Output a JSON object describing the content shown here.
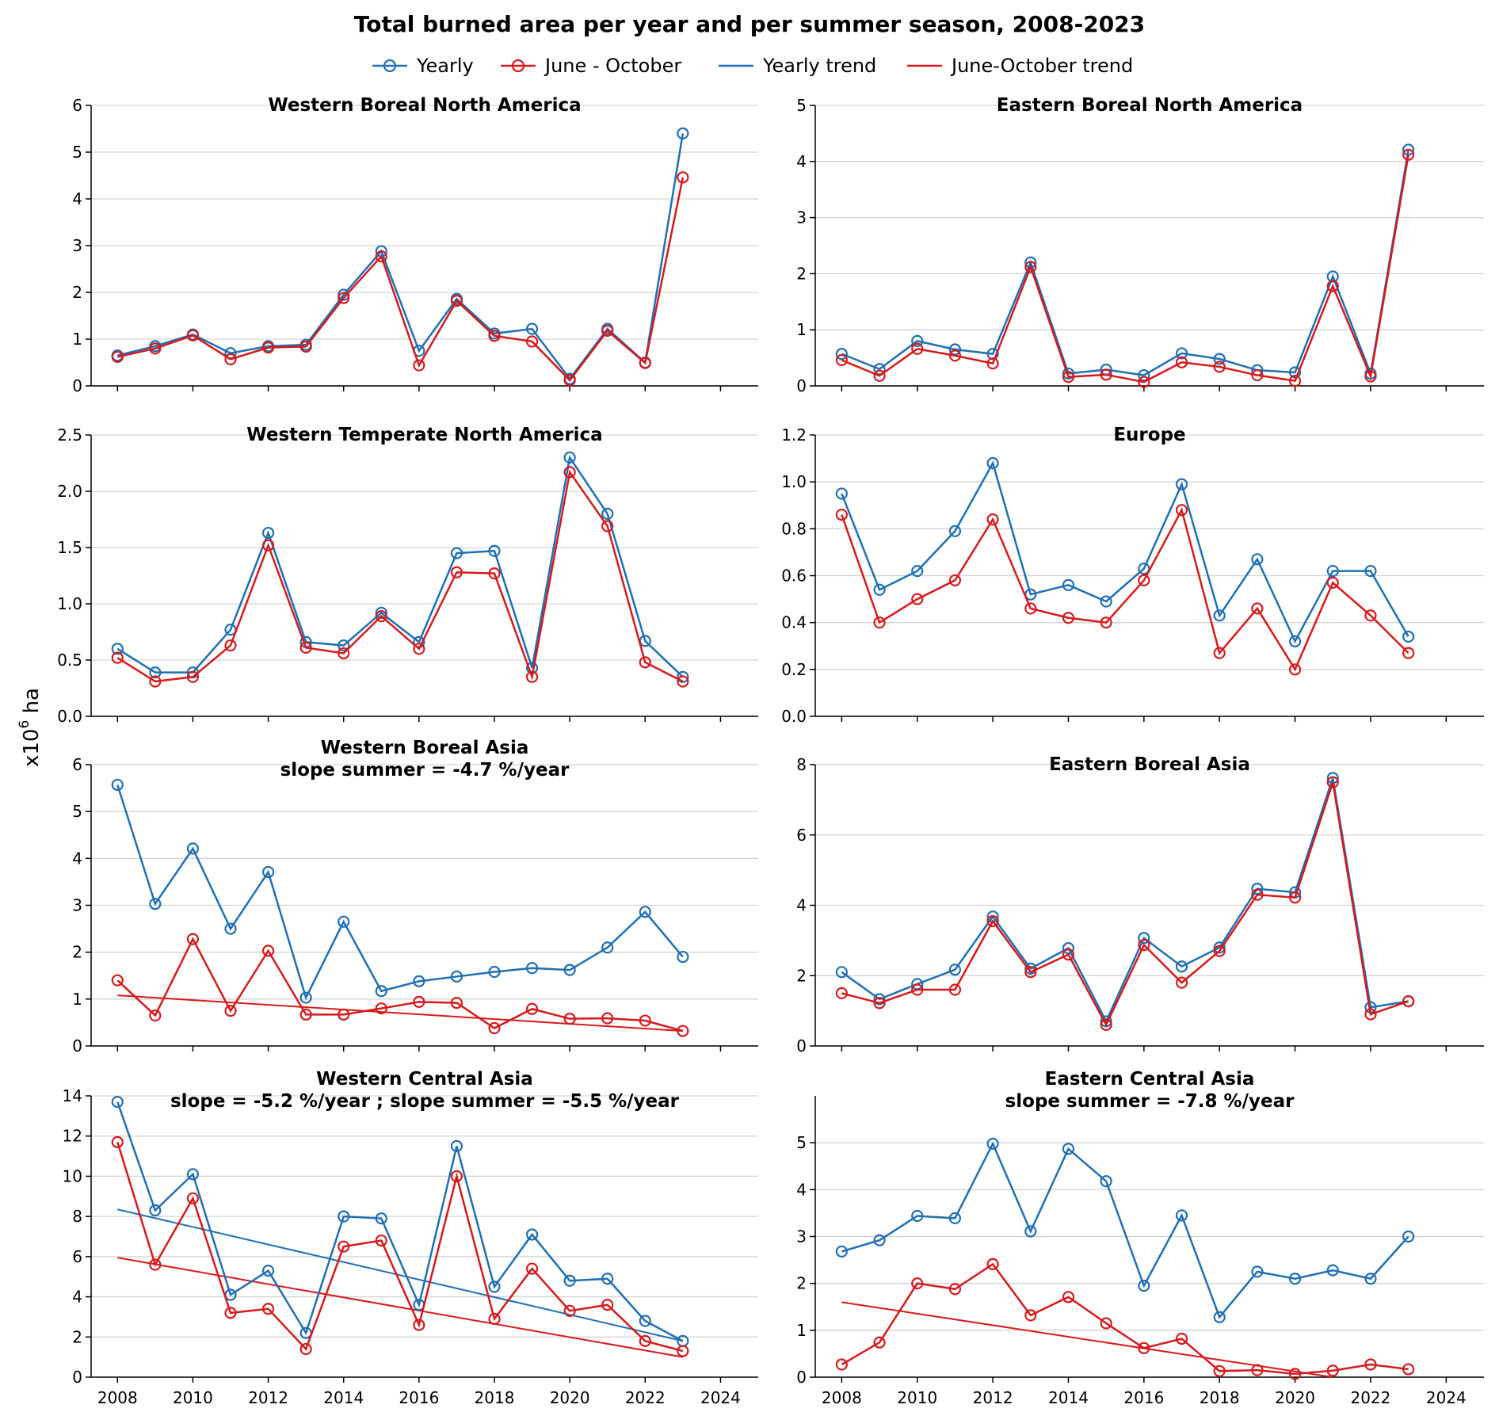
{
  "title": "Total burned area per year and per summer season, 2008-2023",
  "ylabel": "x10",
  "ylabel_sup": "6",
  "ylabel_unit": " ha",
  "legend": [
    {
      "label": "Yearly",
      "color": "#1f6fb4",
      "marker": true
    },
    {
      "label": "June - October",
      "color": "#d7191c",
      "marker": true
    },
    {
      "label": "Yearly trend",
      "color": "#1f6fb4",
      "marker": false
    },
    {
      "label": "June-October trend",
      "color": "#d7191c",
      "marker": false
    }
  ],
  "colors": {
    "yearly": "#1f6fb4",
    "summer": "#d7191c",
    "grid": "#d3d3d3"
  },
  "chart_data": [
    {
      "type": "line",
      "title": "Western Boreal North America",
      "subtitle": "",
      "xlim": [
        2007.3,
        2025
      ],
      "ylim": [
        0,
        6
      ],
      "yticks": [
        0,
        1,
        2,
        3,
        4,
        5,
        6
      ],
      "ytick_labels": [
        "0",
        "1",
        "2",
        "3",
        "4",
        "5",
        "6"
      ],
      "grid": "horizontal",
      "x": [
        2008,
        2009,
        2010,
        2011,
        2012,
        2013,
        2014,
        2015,
        2016,
        2017,
        2018,
        2019,
        2020,
        2021,
        2022,
        2023
      ],
      "series": [
        {
          "name": "Yearly",
          "values": [
            0.65,
            0.85,
            1.1,
            0.7,
            0.85,
            0.88,
            1.95,
            2.88,
            0.75,
            1.86,
            1.12,
            1.22,
            0.15,
            1.22,
            0.5,
            5.4
          ]
        },
        {
          "name": "June - October",
          "values": [
            0.62,
            0.8,
            1.08,
            0.57,
            0.82,
            0.84,
            1.88,
            2.77,
            0.44,
            1.82,
            1.07,
            0.95,
            0.12,
            1.18,
            0.49,
            4.46
          ]
        }
      ],
      "trends": []
    },
    {
      "type": "line",
      "title": "Eastern Boreal North America",
      "subtitle": "",
      "xlim": [
        2007.3,
        2025
      ],
      "ylim": [
        0,
        5
      ],
      "yticks": [
        0,
        1,
        2,
        3,
        4,
        5
      ],
      "ytick_labels": [
        "0",
        "1",
        "2",
        "3",
        "4",
        "5"
      ],
      "grid": "horizontal",
      "x": [
        2008,
        2009,
        2010,
        2011,
        2012,
        2013,
        2014,
        2015,
        2016,
        2017,
        2018,
        2019,
        2020,
        2021,
        2022,
        2023
      ],
      "series": [
        {
          "name": "Yearly",
          "values": [
            0.57,
            0.3,
            0.8,
            0.65,
            0.57,
            2.2,
            0.22,
            0.29,
            0.19,
            0.58,
            0.48,
            0.28,
            0.24,
            1.95,
            0.22,
            4.21
          ]
        },
        {
          "name": "June - October",
          "values": [
            0.46,
            0.18,
            0.66,
            0.54,
            0.4,
            2.12,
            0.16,
            0.2,
            0.07,
            0.42,
            0.34,
            0.19,
            0.09,
            1.78,
            0.17,
            4.12
          ]
        }
      ],
      "trends": []
    },
    {
      "type": "line",
      "title": "Western Temperate North America",
      "subtitle": "",
      "xlim": [
        2007.3,
        2025
      ],
      "ylim": [
        0,
        2.5
      ],
      "yticks": [
        0,
        0.5,
        1,
        1.5,
        2,
        2.5
      ],
      "ytick_labels": [
        "0.0",
        "0.5",
        "1.0",
        "1.5",
        "2.0",
        "2.5"
      ],
      "grid": "horizontal",
      "x": [
        2008,
        2009,
        2010,
        2011,
        2012,
        2013,
        2014,
        2015,
        2016,
        2017,
        2018,
        2019,
        2020,
        2021,
        2022,
        2023
      ],
      "series": [
        {
          "name": "Yearly",
          "values": [
            0.6,
            0.39,
            0.39,
            0.77,
            1.63,
            0.66,
            0.63,
            0.92,
            0.66,
            1.45,
            1.47,
            0.43,
            2.3,
            1.8,
            0.67,
            0.35
          ]
        },
        {
          "name": "June - October",
          "values": [
            0.52,
            0.31,
            0.35,
            0.63,
            1.52,
            0.61,
            0.56,
            0.89,
            0.6,
            1.28,
            1.27,
            0.35,
            2.17,
            1.69,
            0.48,
            0.31
          ]
        }
      ],
      "trends": []
    },
    {
      "type": "line",
      "title": "Europe",
      "subtitle": "",
      "xlim": [
        2007.3,
        2025
      ],
      "ylim": [
        0,
        1.2
      ],
      "yticks": [
        0,
        0.2,
        0.4,
        0.6,
        0.8,
        1.0,
        1.2
      ],
      "ytick_labels": [
        "0.0",
        "0.2",
        "0.4",
        "0.6",
        "0.8",
        "1.0",
        "1.2"
      ],
      "grid": "horizontal",
      "x": [
        2008,
        2009,
        2010,
        2011,
        2012,
        2013,
        2014,
        2015,
        2016,
        2017,
        2018,
        2019,
        2020,
        2021,
        2022,
        2023
      ],
      "series": [
        {
          "name": "Yearly",
          "values": [
            0.95,
            0.54,
            0.62,
            0.79,
            1.08,
            0.52,
            0.56,
            0.49,
            0.63,
            0.99,
            0.43,
            0.67,
            0.32,
            0.62,
            0.62,
            0.34
          ]
        },
        {
          "name": "June - October",
          "values": [
            0.86,
            0.4,
            0.5,
            0.58,
            0.84,
            0.46,
            0.42,
            0.4,
            0.58,
            0.88,
            0.27,
            0.46,
            0.2,
            0.57,
            0.43,
            0.27
          ]
        }
      ],
      "trends": []
    },
    {
      "type": "line",
      "title": "Western Boreal Asia",
      "subtitle": "slope summer = -4.7 %/year",
      "xlim": [
        2007.3,
        2025
      ],
      "ylim": [
        0,
        6
      ],
      "yticks": [
        0,
        1,
        2,
        3,
        4,
        5,
        6
      ],
      "ytick_labels": [
        "0",
        "1",
        "2",
        "3",
        "4",
        "5",
        "6"
      ],
      "grid": "horizontal",
      "x": [
        2008,
        2009,
        2010,
        2011,
        2012,
        2013,
        2014,
        2015,
        2016,
        2017,
        2018,
        2019,
        2020,
        2021,
        2022,
        2023
      ],
      "series": [
        {
          "name": "Yearly",
          "values": [
            5.57,
            3.03,
            4.21,
            2.5,
            3.71,
            1.03,
            2.65,
            1.17,
            1.38,
            1.48,
            1.58,
            1.66,
            1.62,
            2.1,
            2.86,
            1.9
          ]
        },
        {
          "name": "June - October",
          "values": [
            1.4,
            0.65,
            2.28,
            0.75,
            2.03,
            0.67,
            0.67,
            0.8,
            0.94,
            0.92,
            0.38,
            0.79,
            0.58,
            0.59,
            0.54,
            0.32
          ]
        }
      ],
      "trends": [
        {
          "name": "June-October trend",
          "x": [
            2008,
            2023
          ],
          "y": [
            1.08,
            0.32
          ]
        }
      ]
    },
    {
      "type": "line",
      "title": "Eastern Boreal Asia",
      "subtitle": "",
      "xlim": [
        2007.3,
        2025
      ],
      "ylim": [
        0,
        8
      ],
      "yticks": [
        0,
        2,
        4,
        6,
        8
      ],
      "ytick_labels": [
        "0",
        "2",
        "4",
        "6",
        "8"
      ],
      "grid": "horizontal",
      "x": [
        2008,
        2009,
        2010,
        2011,
        2012,
        2013,
        2014,
        2015,
        2016,
        2017,
        2018,
        2019,
        2020,
        2021,
        2022,
        2023
      ],
      "series": [
        {
          "name": "Yearly",
          "values": [
            2.1,
            1.33,
            1.76,
            2.17,
            3.68,
            2.2,
            2.78,
            0.7,
            3.07,
            2.26,
            2.8,
            4.47,
            4.37,
            7.62,
            1.1,
            1.27
          ]
        },
        {
          "name": "June - October",
          "values": [
            1.5,
            1.22,
            1.6,
            1.6,
            3.55,
            2.1,
            2.6,
            0.6,
            2.87,
            1.8,
            2.7,
            4.3,
            4.22,
            7.5,
            0.9,
            1.27
          ]
        }
      ],
      "trends": []
    },
    {
      "type": "line",
      "title": "Western Central Asia",
      "subtitle": "slope = -5.2 %/year ; slope summer = -5.5 %/year",
      "xlim": [
        2007.3,
        2025
      ],
      "ylim": [
        0,
        14
      ],
      "yticks": [
        0,
        2,
        4,
        6,
        8,
        10,
        12,
        14
      ],
      "ytick_labels": [
        "0",
        "2",
        "4",
        "6",
        "8",
        "10",
        "12",
        "14"
      ],
      "grid": "horizontal",
      "x": [
        2008,
        2009,
        2010,
        2011,
        2012,
        2013,
        2014,
        2015,
        2016,
        2017,
        2018,
        2019,
        2020,
        2021,
        2022,
        2023
      ],
      "xtick_labels": [
        "2008",
        "2010",
        "2012",
        "2014",
        "2016",
        "2018",
        "2020",
        "2022",
        "2024"
      ],
      "series": [
        {
          "name": "Yearly",
          "values": [
            13.7,
            8.3,
            10.1,
            4.1,
            5.3,
            2.2,
            8.0,
            7.9,
            3.6,
            11.5,
            4.5,
            7.1,
            4.8,
            4.9,
            2.8,
            1.8
          ]
        },
        {
          "name": "June - October",
          "values": [
            11.7,
            5.6,
            8.9,
            3.2,
            3.4,
            1.4,
            6.5,
            6.8,
            2.6,
            10.0,
            2.9,
            5.4,
            3.3,
            3.6,
            1.8,
            1.3
          ]
        }
      ],
      "trends": [
        {
          "name": "Yearly trend",
          "x": [
            2008,
            2023
          ],
          "y": [
            8.35,
            1.8
          ]
        },
        {
          "name": "June-October trend",
          "x": [
            2008,
            2023
          ],
          "y": [
            5.95,
            1.0
          ]
        }
      ]
    },
    {
      "type": "line",
      "title": "Eastern Central Asia",
      "subtitle": "slope summer = -7.8 %/year",
      "xlim": [
        2007.3,
        2025
      ],
      "ylim": [
        0,
        6
      ],
      "yticks": [
        0,
        1,
        2,
        3,
        4,
        5
      ],
      "ytick_labels": [
        "0",
        "1",
        "2",
        "3",
        "4",
        "5"
      ],
      "grid": "horizontal",
      "x": [
        2008,
        2009,
        2010,
        2011,
        2012,
        2013,
        2014,
        2015,
        2016,
        2017,
        2018,
        2019,
        2020,
        2021,
        2022,
        2023
      ],
      "xtick_labels": [
        "2008",
        "2010",
        "2012",
        "2014",
        "2016",
        "2018",
        "2020",
        "2022",
        "2024"
      ],
      "series": [
        {
          "name": "Yearly",
          "values": [
            2.68,
            2.92,
            3.44,
            3.39,
            4.98,
            3.11,
            4.87,
            4.18,
            1.95,
            3.45,
            1.28,
            2.25,
            2.1,
            2.28,
            2.1,
            3.0
          ]
        },
        {
          "name": "June - October",
          "values": [
            0.27,
            0.74,
            2.0,
            1.88,
            2.41,
            1.32,
            1.71,
            1.15,
            0.62,
            0.82,
            0.13,
            0.15,
            0.07,
            0.14,
            0.27,
            0.17
          ]
        }
      ],
      "trends": [
        {
          "name": "June-October trend",
          "x": [
            2008,
            2021
          ],
          "y": [
            1.6,
            0.0
          ]
        }
      ]
    }
  ]
}
